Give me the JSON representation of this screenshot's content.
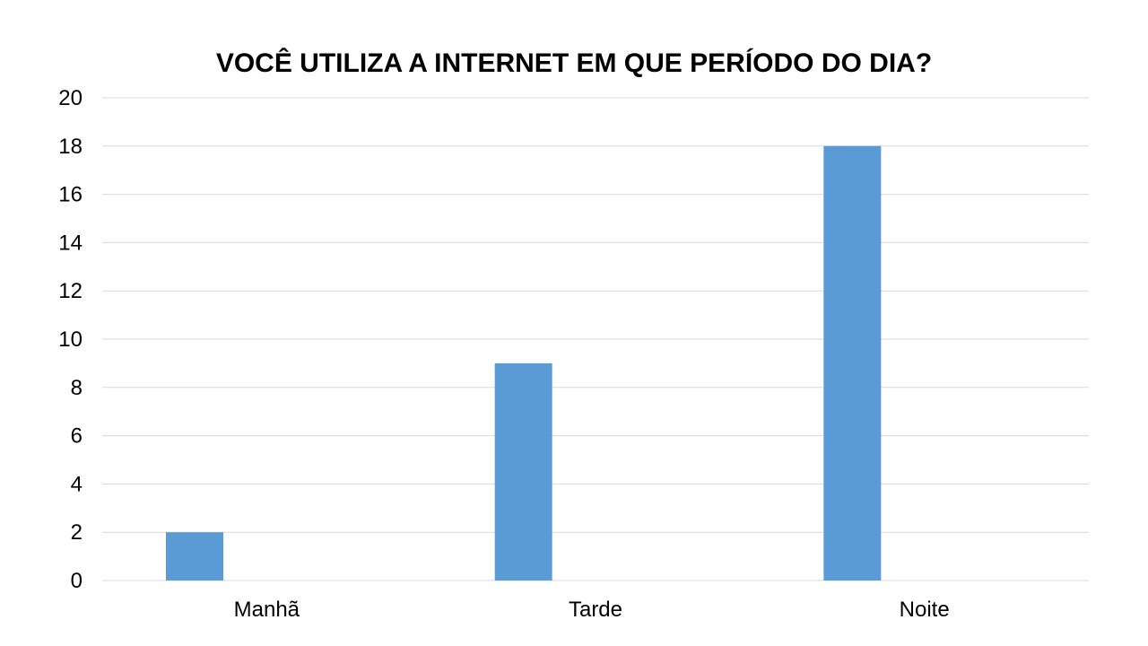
{
  "chart_data": {
    "type": "bar",
    "title": "VOCÊ UTILIZA A INTERNET EM QUE PERÍODO DO DIA?",
    "categories": [
      "Manhã",
      "Tarde",
      "Noite"
    ],
    "series": [
      {
        "values": [
          2,
          9,
          18
        ],
        "color": "#5b9bd5"
      }
    ],
    "xlabel": "",
    "ylabel": "",
    "ylim": [
      0,
      20
    ],
    "yticks": [
      "0",
      "2",
      "4",
      "6",
      "8",
      "10",
      "12",
      "14",
      "16",
      "18",
      "20"
    ],
    "grid": true,
    "legend": "none"
  }
}
